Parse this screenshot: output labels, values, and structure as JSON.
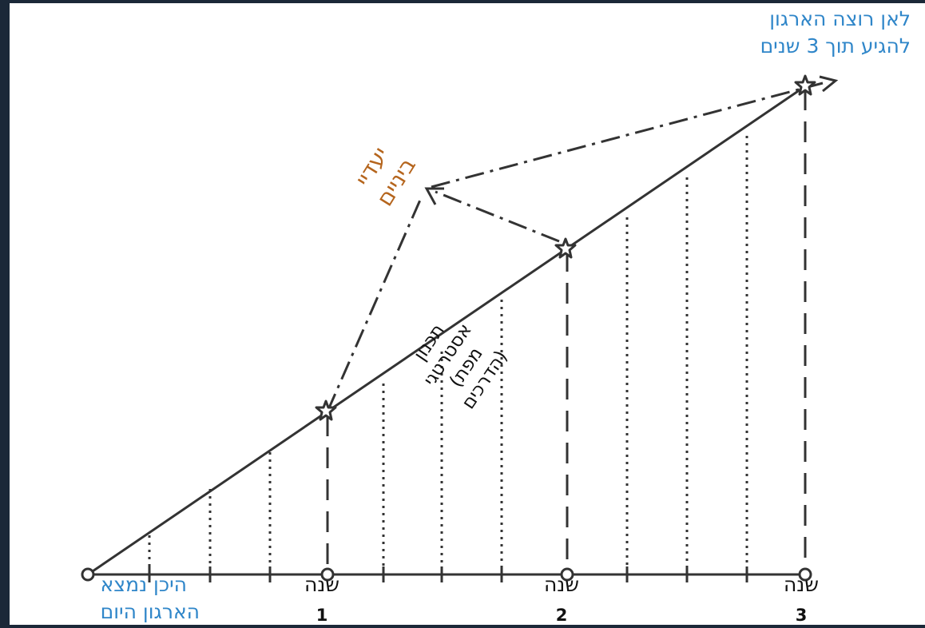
{
  "colors": {
    "frame": "#1b2838",
    "line": "#333333",
    "goal_text": "#2f86c9",
    "start_text": "#2f86c9",
    "interim_text": "#b5651d",
    "plan_text": "#111111",
    "year_text": "#111111"
  },
  "labels": {
    "goal_line1": "לאן רוצה הארגון",
    "goal_line2": "להגיע תוך 3 שנים",
    "start_line1": "היכן נמצא",
    "start_line2": "הארגון היום",
    "interim_line1": "יעדיי",
    "interim_line2": "ביניים",
    "plan_line1": "תכנון",
    "plan_line2": "אסטרטגי",
    "plan_line3": "(מפת",
    "plan_line4": "הדרכים)"
  },
  "years": [
    {
      "word": "שנה",
      "number": "1"
    },
    {
      "word": "שנה",
      "number": "2"
    },
    {
      "word": "שנה",
      "number": "3"
    }
  ],
  "icons": {
    "milestone": "star-icon",
    "origin": "circle-marker-icon",
    "goal_arrow": "arrowhead-icon"
  }
}
